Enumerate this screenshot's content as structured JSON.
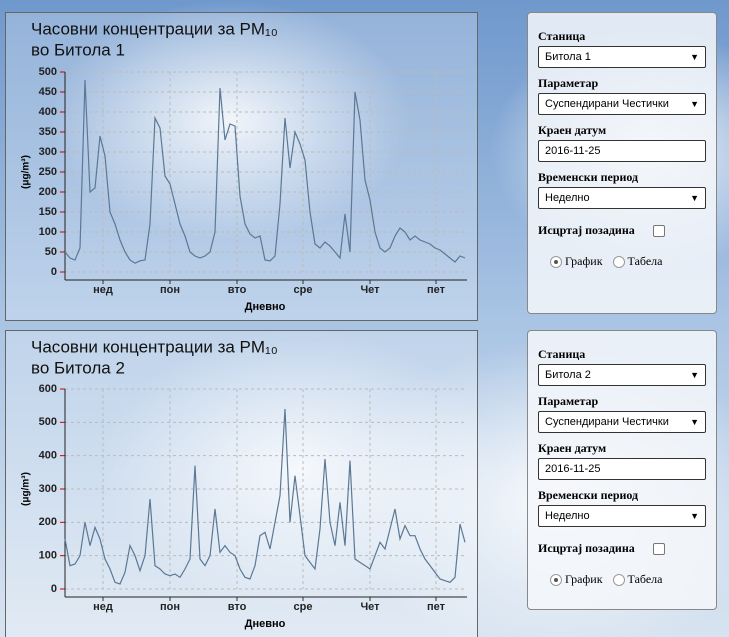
{
  "chart_data": [
    {
      "type": "line",
      "title": "Часовни концентрации за PM₁₀",
      "subtitle": "во Битола 1",
      "y_label": "(μg/m³)",
      "x_label": "Дневно",
      "color": "#5b7895",
      "grid": true,
      "values": [
        50,
        35,
        30,
        60,
        480,
        200,
        210,
        340,
        290,
        150,
        120,
        80,
        50,
        30,
        22,
        28,
        30,
        120,
        385,
        360,
        240,
        220,
        170,
        120,
        90,
        50,
        40,
        35,
        40,
        50,
        100,
        460,
        330,
        370,
        365,
        190,
        120,
        95,
        85,
        90,
        30,
        28,
        40,
        170,
        385,
        260,
        350,
        320,
        280,
        150,
        70,
        60,
        75,
        65,
        50,
        35,
        145,
        50,
        450,
        380,
        230,
        180,
        100,
        60,
        50,
        60,
        90,
        110,
        100,
        80,
        90,
        80,
        75,
        70,
        60,
        55,
        45,
        35,
        25,
        40,
        35
      ],
      "xlim": [
        0,
        80
      ],
      "xticks": [
        {
          "value": 7.6,
          "label": "нед"
        },
        {
          "value": 21,
          "label": "пон"
        },
        {
          "value": 34.4,
          "label": "вто"
        },
        {
          "value": 47.6,
          "label": "сре"
        },
        {
          "value": 61,
          "label": "Чет"
        },
        {
          "value": 74.2,
          "label": "пет"
        }
      ],
      "ylim": [
        0,
        500
      ],
      "yticks": [
        0,
        50,
        100,
        150,
        200,
        250,
        300,
        350,
        400,
        450,
        500
      ]
    },
    {
      "type": "line",
      "title": "Часовни концентрации за PM₁₀",
      "subtitle": "во Битола 2",
      "y_label": "(μg/m³)",
      "x_label": "Дневно",
      "color": "#5b7895",
      "grid": true,
      "values": [
        150,
        70,
        75,
        100,
        200,
        130,
        185,
        150,
        90,
        60,
        20,
        15,
        50,
        130,
        100,
        55,
        100,
        270,
        70,
        60,
        45,
        40,
        45,
        35,
        60,
        90,
        370,
        90,
        70,
        100,
        240,
        110,
        130,
        110,
        100,
        60,
        35,
        30,
        70,
        160,
        170,
        120,
        200,
        280,
        540,
        200,
        340,
        220,
        100,
        80,
        60,
        180,
        390,
        200,
        130,
        260,
        130,
        385,
        90,
        80,
        70,
        60,
        100,
        140,
        120,
        180,
        240,
        150,
        190,
        160,
        160,
        120,
        90,
        70,
        50,
        30,
        25,
        20,
        35,
        195,
        140
      ],
      "xlim": [
        0,
        80
      ],
      "xticks": [
        {
          "value": 7.6,
          "label": "нед"
        },
        {
          "value": 21,
          "label": "пон"
        },
        {
          "value": 34.4,
          "label": "вто"
        },
        {
          "value": 47.6,
          "label": "сре"
        },
        {
          "value": 61,
          "label": "Чет"
        },
        {
          "value": 74.2,
          "label": "пет"
        }
      ],
      "ylim": [
        0,
        600
      ],
      "yticks": [
        0,
        100,
        200,
        300,
        400,
        500,
        600
      ]
    }
  ],
  "panels": [
    {
      "station_label": "Станица",
      "station": "Битола 1",
      "parameter_label": "Параметар",
      "parameter": "Суспендирани Честички",
      "date_label": "Краен датум",
      "date": "2016-11-25",
      "period_label": "Временски период",
      "period": "Неделно",
      "background_label": "Исцртај позадина",
      "chart_option": "График",
      "table_option": "Табела"
    },
    {
      "station_label": "Станица",
      "station": "Битола 2",
      "parameter_label": "Параметар",
      "parameter": "Суспендирани Честички",
      "date_label": "Краен датум",
      "date": "2016-11-25",
      "period_label": "Временски период",
      "period": "Неделно",
      "background_label": "Исцртај позадина",
      "chart_option": "График",
      "table_option": "Табела"
    }
  ]
}
